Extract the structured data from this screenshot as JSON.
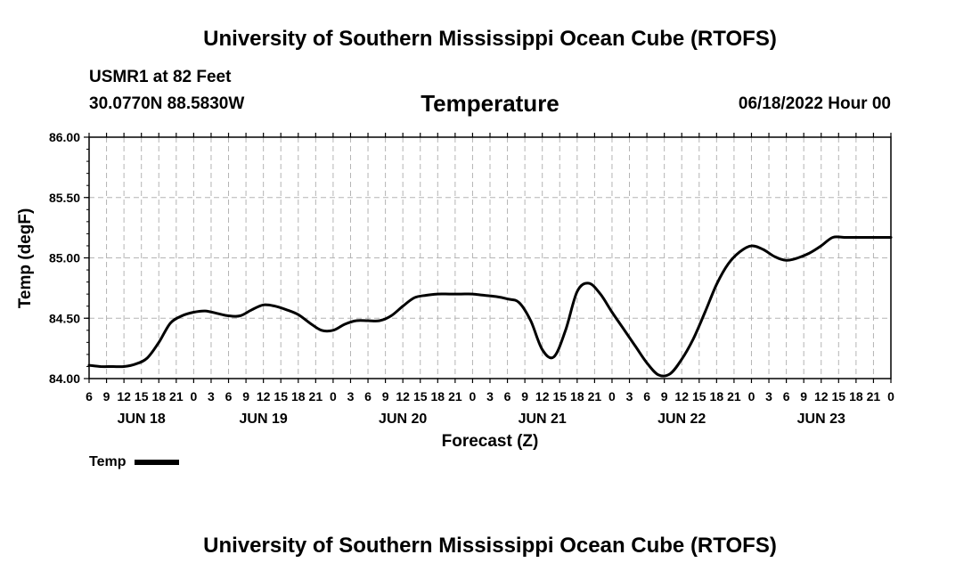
{
  "header": {
    "title": "University of Southern Mississippi Ocean Cube (RTOFS)",
    "station": "USMR1 at 82 Feet",
    "coords": "30.0770N  88.5830W",
    "chart_title": "Temperature",
    "run_time": "06/18/2022 Hour 00"
  },
  "footer": {
    "title": "University of Southern Mississippi Ocean Cube (RTOFS)"
  },
  "legend": {
    "label": "Temp",
    "color": "#000000"
  },
  "chart_data": {
    "type": "line",
    "title": "Temperature",
    "xlabel": "Forecast (Z)",
    "ylabel": "Temp (degF)",
    "ylim": [
      84.0,
      86.0
    ],
    "y_ticks": [
      "84.00",
      "84.50",
      "85.00",
      "85.50",
      "86.00"
    ],
    "xlim_hours": [
      6,
      144
    ],
    "x_hour_labels": [
      "6",
      "9",
      "12",
      "15",
      "18",
      "21",
      "0",
      "3",
      "6",
      "9",
      "12",
      "15",
      "18",
      "21",
      "0",
      "3",
      "6",
      "9",
      "12",
      "15",
      "18",
      "21",
      "0",
      "3",
      "6",
      "9",
      "12",
      "15",
      "18",
      "21",
      "0",
      "3",
      "6",
      "9",
      "12",
      "15",
      "18",
      "21",
      "0",
      "3",
      "6",
      "9",
      "12",
      "15",
      "18",
      "21",
      "0"
    ],
    "day_labels": [
      {
        "label": "JUN 18",
        "center_hour": 15
      },
      {
        "label": "JUN 19",
        "center_hour": 36
      },
      {
        "label": "JUN 20",
        "center_hour": 60
      },
      {
        "label": "JUN 21",
        "center_hour": 84
      },
      {
        "label": "JUN 22",
        "center_hour": 108
      },
      {
        "label": "JUN 23",
        "center_hour": 132
      }
    ],
    "grid": true,
    "series": [
      {
        "name": "Temp",
        "color": "#000000",
        "x": [
          6,
          8,
          10,
          12,
          14,
          16,
          18,
          20,
          22,
          24,
          26,
          28,
          30,
          32,
          34,
          36,
          38,
          40,
          42,
          44,
          46,
          48,
          50,
          52,
          54,
          56,
          58,
          60,
          62,
          64,
          66,
          68,
          70,
          72,
          74,
          76,
          78,
          80,
          82,
          84,
          86,
          88,
          90,
          92,
          94,
          96,
          98,
          100,
          102,
          104,
          106,
          108,
          110,
          112,
          114,
          116,
          118,
          120,
          122,
          124,
          126,
          128,
          130,
          132,
          134,
          136,
          138,
          140,
          142,
          144
        ],
        "values": [
          84.11,
          84.1,
          84.1,
          84.1,
          84.12,
          84.17,
          84.3,
          84.46,
          84.52,
          84.55,
          84.56,
          84.54,
          84.52,
          84.52,
          84.57,
          84.61,
          84.6,
          84.57,
          84.53,
          84.46,
          84.4,
          84.4,
          84.45,
          84.48,
          84.48,
          84.48,
          84.52,
          84.6,
          84.67,
          84.69,
          84.7,
          84.7,
          84.7,
          84.7,
          84.69,
          84.68,
          84.66,
          84.63,
          84.48,
          84.24,
          84.18,
          84.4,
          84.72,
          84.79,
          84.7,
          84.55,
          84.41,
          84.27,
          84.13,
          84.03,
          84.04,
          84.16,
          84.33,
          84.55,
          84.78,
          84.95,
          85.05,
          85.1,
          85.07,
          85.01,
          84.98,
          85.0,
          85.04,
          85.1,
          85.17,
          85.17,
          85.17,
          85.17,
          85.17,
          85.17
        ]
      }
    ]
  }
}
